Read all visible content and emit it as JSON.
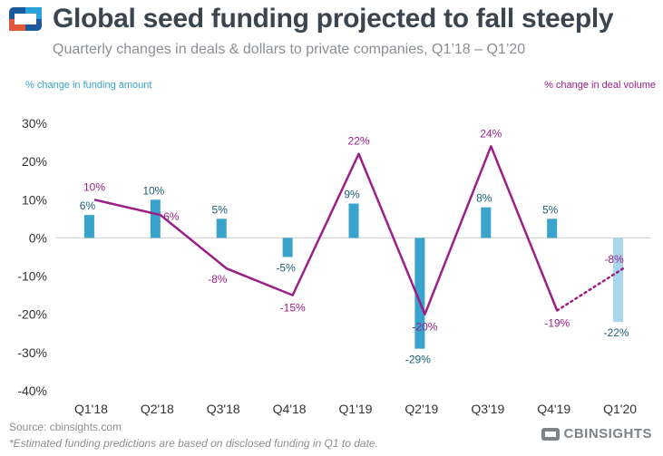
{
  "header": {
    "title": "Global seed funding projected to fall steeply",
    "subtitle": "Quarterly changes in deals & dollars to private companies, Q1’18 – Q1’20"
  },
  "legend": {
    "funding_label": "% change in funding amount",
    "deals_label": "% change in deal volume"
  },
  "footer": {
    "source": "Source: cbinsights.com",
    "footnote": "*Estimated funding predictions are based on disclosed funding in Q1 to date.",
    "brand": "CBINSIGHTS"
  },
  "colors": {
    "bar": "#3aa3cc",
    "bar_projected": "#a8d6ea",
    "line": "#9b1f87",
    "bar_label": "#1f5d7a",
    "axis_text": "#333333"
  },
  "chart_data": {
    "type": "bar",
    "categories": [
      "Q1'18",
      "Q2'18",
      "Q3'18",
      "Q4'18",
      "Q1'19",
      "Q2'19",
      "Q3'19",
      "Q4'19",
      "Q1'20"
    ],
    "series": [
      {
        "name": "% change in funding amount",
        "type": "bar",
        "values": [
          6,
          10,
          5,
          -5,
          9,
          -29,
          8,
          5,
          -22
        ],
        "labels": [
          "6%",
          "10%",
          "5%",
          "-5%",
          "9%",
          "-29%",
          "8%",
          "5%",
          "-22%"
        ],
        "projected": [
          false,
          false,
          false,
          false,
          false,
          false,
          false,
          false,
          true
        ]
      },
      {
        "name": "% change in deal volume",
        "type": "line",
        "values": [
          10,
          6,
          -8,
          -15,
          22,
          -20,
          24,
          -19,
          -8
        ],
        "labels": [
          "10%",
          "6%",
          "-8%",
          "-15%",
          "22%",
          "-20%",
          "24%",
          "-19%",
          "-8%"
        ],
        "projected": [
          false,
          false,
          false,
          false,
          false,
          false,
          false,
          false,
          true
        ]
      }
    ],
    "y_ticks": [
      "30%",
      "20%",
      "10%",
      "0%",
      "-10%",
      "-20%",
      "-30%",
      "-40%"
    ],
    "y_tick_values": [
      30,
      20,
      10,
      0,
      -10,
      -20,
      -30,
      -40
    ],
    "ylim": [
      -40,
      30
    ],
    "grid": false,
    "legend_placement": "top"
  }
}
